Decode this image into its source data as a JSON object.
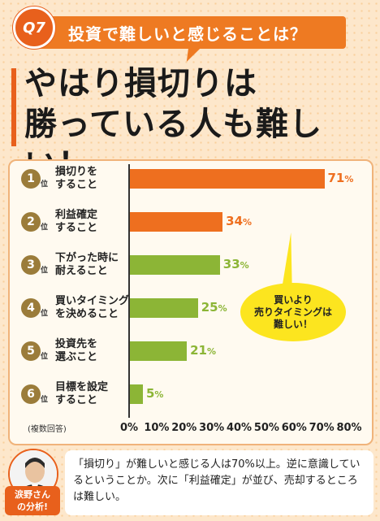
{
  "header": {
    "badge": "Q7",
    "question": "投資で難しいと感じることは？",
    "headline_line1": "やはり損切りは",
    "headline_line2": "勝っている人も難しい！"
  },
  "callout": "買いより\n売りタイミングは\n難しい！",
  "note": "(複数回答)",
  "rank_suffix": "位",
  "comment": {
    "tag": "涙野さん\nの分析!",
    "text": "「損切り」が難しいと感じる人は70%以上。逆に意識しているということか。次に「利益確定」が並び、売却するところは難しい。"
  },
  "colors": {
    "orange": "#ee6f1f",
    "green": "#8cb536",
    "badge": "#9b7c3a"
  },
  "chart_data": {
    "type": "bar",
    "orientation": "horizontal",
    "categories": [
      {
        "rank": "1",
        "label": "損切りを\nすること",
        "value": 71,
        "color": "orange"
      },
      {
        "rank": "2",
        "label": "利益確定\nすること",
        "value": 34,
        "color": "orange"
      },
      {
        "rank": "3",
        "label": "下がった時に\n耐えること",
        "value": 33,
        "color": "green"
      },
      {
        "rank": "4",
        "label": "買いタイミング\nを決めること",
        "value": 25,
        "color": "green"
      },
      {
        "rank": "5",
        "label": "投資先を\n選ぶこと",
        "value": 21,
        "color": "green"
      },
      {
        "rank": "6",
        "label": "目標を設定\nすること",
        "value": 5,
        "color": "green"
      }
    ],
    "value_suffix": "%",
    "xlim": [
      0,
      80
    ],
    "ticks": [
      "0%",
      "10%",
      "20%",
      "30%",
      "40%",
      "50%",
      "60%",
      "70%",
      "80%"
    ],
    "grid": false
  }
}
